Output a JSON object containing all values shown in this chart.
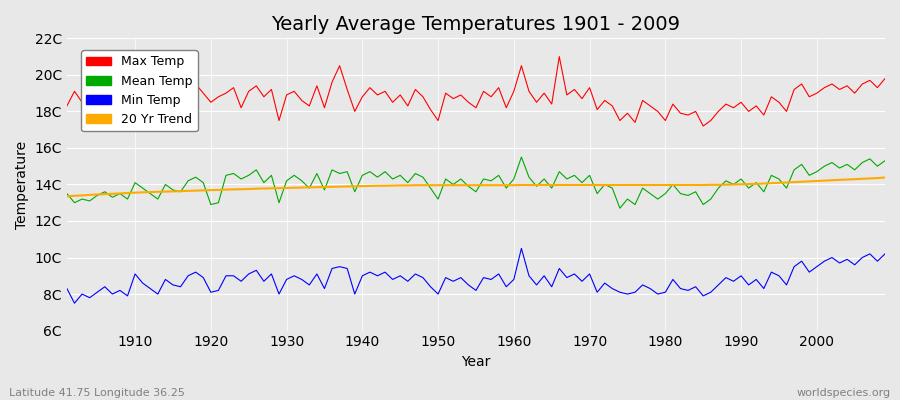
{
  "title": "Yearly Average Temperatures 1901 - 2009",
  "xlabel": "Year",
  "ylabel": "Temperature",
  "footnote_left": "Latitude 41.75 Longitude 36.25",
  "footnote_right": "worldspecies.org",
  "years": [
    1901,
    1902,
    1903,
    1904,
    1905,
    1906,
    1907,
    1908,
    1909,
    1910,
    1911,
    1912,
    1913,
    1914,
    1915,
    1916,
    1917,
    1918,
    1919,
    1920,
    1921,
    1922,
    1923,
    1924,
    1925,
    1926,
    1927,
    1928,
    1929,
    1930,
    1931,
    1932,
    1933,
    1934,
    1935,
    1936,
    1937,
    1938,
    1939,
    1940,
    1941,
    1942,
    1943,
    1944,
    1945,
    1946,
    1947,
    1948,
    1949,
    1950,
    1951,
    1952,
    1953,
    1954,
    1955,
    1956,
    1957,
    1958,
    1959,
    1960,
    1961,
    1962,
    1963,
    1964,
    1965,
    1966,
    1967,
    1968,
    1969,
    1970,
    1971,
    1972,
    1973,
    1974,
    1975,
    1976,
    1977,
    1978,
    1979,
    1980,
    1981,
    1982,
    1983,
    1984,
    1985,
    1986,
    1987,
    1988,
    1989,
    1990,
    1991,
    1992,
    1993,
    1994,
    1995,
    1996,
    1997,
    1998,
    1999,
    2000,
    2001,
    2002,
    2003,
    2004,
    2005,
    2006,
    2007,
    2008,
    2009
  ],
  "max_temp": [
    18.3,
    19.1,
    18.5,
    18.0,
    17.5,
    18.8,
    18.2,
    17.8,
    18.1,
    17.5,
    18.6,
    18.3,
    18.0,
    18.9,
    18.4,
    18.7,
    19.1,
    19.5,
    19.0,
    18.5,
    18.8,
    19.0,
    19.3,
    18.2,
    19.1,
    19.4,
    18.8,
    19.2,
    17.5,
    18.9,
    19.1,
    18.6,
    18.3,
    19.4,
    18.2,
    19.6,
    20.5,
    19.2,
    18.0,
    18.8,
    19.3,
    18.9,
    19.1,
    18.5,
    18.9,
    18.3,
    19.2,
    18.8,
    18.1,
    17.5,
    19.0,
    18.7,
    18.9,
    18.5,
    18.2,
    19.1,
    18.8,
    19.3,
    18.2,
    19.1,
    20.5,
    19.1,
    18.5,
    19.0,
    18.4,
    21.0,
    18.9,
    19.2,
    18.7,
    19.3,
    18.1,
    18.6,
    18.3,
    17.5,
    17.9,
    17.4,
    18.6,
    18.3,
    18.0,
    17.5,
    18.4,
    17.9,
    17.8,
    18.0,
    17.2,
    17.5,
    18.0,
    18.4,
    18.2,
    18.5,
    18.0,
    18.3,
    17.8,
    18.8,
    18.5,
    18.0,
    19.2,
    19.5,
    18.8,
    19.0,
    19.3,
    19.5,
    19.2,
    19.4,
    19.0,
    19.5,
    19.7,
    19.3,
    19.8
  ],
  "mean_temp": [
    13.5,
    13.0,
    13.2,
    13.1,
    13.4,
    13.6,
    13.3,
    13.5,
    13.2,
    14.1,
    13.8,
    13.5,
    13.2,
    14.0,
    13.7,
    13.6,
    14.2,
    14.4,
    14.1,
    12.9,
    13.0,
    14.5,
    14.6,
    14.3,
    14.5,
    14.8,
    14.1,
    14.5,
    13.0,
    14.2,
    14.5,
    14.2,
    13.8,
    14.6,
    13.7,
    14.8,
    14.6,
    14.7,
    13.6,
    14.5,
    14.7,
    14.4,
    14.7,
    14.3,
    14.5,
    14.1,
    14.6,
    14.4,
    13.8,
    13.2,
    14.3,
    14.0,
    14.3,
    13.9,
    13.6,
    14.3,
    14.2,
    14.5,
    13.8,
    14.3,
    15.5,
    14.4,
    13.9,
    14.3,
    13.8,
    14.7,
    14.3,
    14.5,
    14.1,
    14.5,
    13.5,
    14.0,
    13.8,
    12.7,
    13.2,
    12.9,
    13.8,
    13.5,
    13.2,
    13.5,
    14.0,
    13.5,
    13.4,
    13.6,
    12.9,
    13.2,
    13.8,
    14.2,
    14.0,
    14.3,
    13.8,
    14.1,
    13.6,
    14.5,
    14.3,
    13.8,
    14.8,
    15.1,
    14.5,
    14.7,
    15.0,
    15.2,
    14.9,
    15.1,
    14.8,
    15.2,
    15.4,
    15.0,
    15.3
  ],
  "min_temp": [
    8.3,
    7.5,
    8.0,
    7.8,
    8.1,
    8.4,
    8.0,
    8.2,
    7.9,
    9.1,
    8.6,
    8.3,
    8.0,
    8.8,
    8.5,
    8.4,
    9.0,
    9.2,
    8.9,
    8.1,
    8.2,
    9.0,
    9.0,
    8.7,
    9.1,
    9.3,
    8.7,
    9.1,
    8.0,
    8.8,
    9.0,
    8.8,
    8.5,
    9.1,
    8.3,
    9.4,
    9.5,
    9.4,
    8.0,
    9.0,
    9.2,
    9.0,
    9.2,
    8.8,
    9.0,
    8.7,
    9.1,
    8.9,
    8.4,
    8.0,
    8.9,
    8.7,
    8.9,
    8.5,
    8.2,
    8.9,
    8.8,
    9.1,
    8.4,
    8.8,
    10.5,
    9.0,
    8.5,
    9.0,
    8.4,
    9.4,
    8.9,
    9.1,
    8.7,
    9.1,
    8.1,
    8.6,
    8.3,
    8.1,
    8.0,
    8.1,
    8.5,
    8.3,
    8.0,
    8.1,
    8.8,
    8.3,
    8.2,
    8.4,
    7.9,
    8.1,
    8.5,
    8.9,
    8.7,
    9.0,
    8.5,
    8.8,
    8.3,
    9.2,
    9.0,
    8.5,
    9.5,
    9.8,
    9.2,
    9.5,
    9.8,
    10.0,
    9.7,
    9.9,
    9.6,
    10.0,
    10.2,
    9.8,
    10.2
  ],
  "trend_years": [
    1901,
    1902,
    1903,
    1904,
    1905,
    1906,
    1907,
    1908,
    1909,
    1910,
    1911,
    1912,
    1913,
    1914,
    1915,
    1916,
    1917,
    1918,
    1919,
    1920,
    1921,
    1922,
    1923,
    1924,
    1925,
    1926,
    1927,
    1928,
    1929,
    1930,
    1931,
    1932,
    1933,
    1934,
    1935,
    1936,
    1937,
    1938,
    1939,
    1940,
    1941,
    1942,
    1943,
    1944,
    1945,
    1946,
    1947,
    1948,
    1949,
    1950,
    1951,
    1952,
    1953,
    1954,
    1955,
    1956,
    1957,
    1958,
    1959,
    1960,
    1961,
    1962,
    1963,
    1964,
    1965,
    1966,
    1967,
    1968,
    1969,
    1970,
    1971,
    1972,
    1973,
    1974,
    1975,
    1976,
    1977,
    1978,
    1979,
    1980,
    1981,
    1982,
    1983,
    1984,
    1985,
    1986,
    1987,
    1988,
    1989,
    1990,
    1991,
    1992,
    1993,
    1994,
    1995,
    1996,
    1997,
    1998,
    1999,
    2000,
    2001,
    2002,
    2003,
    2004,
    2005,
    2006,
    2007,
    2008,
    2009
  ],
  "trend_vals": [
    13.35,
    13.38,
    13.4,
    13.43,
    13.45,
    13.47,
    13.49,
    13.51,
    13.53,
    13.55,
    13.57,
    13.58,
    13.6,
    13.61,
    13.62,
    13.63,
    13.65,
    13.66,
    13.68,
    13.69,
    13.7,
    13.72,
    13.73,
    13.74,
    13.75,
    13.77,
    13.78,
    13.79,
    13.8,
    13.81,
    13.82,
    13.83,
    13.84,
    13.85,
    13.86,
    13.87,
    13.88,
    13.89,
    13.9,
    13.91,
    13.92,
    13.93,
    13.93,
    13.94,
    13.95,
    13.95,
    13.96,
    13.96,
    13.96,
    13.96,
    13.96,
    13.96,
    13.96,
    13.96,
    13.96,
    13.96,
    13.96,
    13.96,
    13.96,
    13.96,
    13.97,
    13.97,
    13.97,
    13.97,
    13.97,
    13.97,
    13.97,
    13.97,
    13.97,
    13.97,
    13.97,
    13.97,
    13.97,
    13.97,
    13.97,
    13.97,
    13.97,
    13.97,
    13.97,
    13.97,
    13.97,
    13.97,
    13.97,
    13.97,
    13.97,
    13.98,
    13.98,
    13.99,
    14.0,
    14.01,
    14.02,
    14.03,
    14.05,
    14.07,
    14.09,
    14.11,
    14.13,
    14.15,
    14.17,
    14.19,
    14.21,
    14.23,
    14.25,
    14.27,
    14.29,
    14.31,
    14.33,
    14.35,
    14.38
  ],
  "max_color": "#ff0000",
  "mean_color": "#00aa00",
  "min_color": "#0000ff",
  "trend_color": "#ffaa00",
  "bg_color": "#e8e8e8",
  "grid_color": "#ffffff",
  "ylim": [
    6,
    22
  ],
  "yticks": [
    6,
    8,
    10,
    12,
    14,
    16,
    18,
    20,
    22
  ],
  "ytick_labels": [
    "6C",
    "8C",
    "10C",
    "12C",
    "14C",
    "16C",
    "18C",
    "20C",
    "22C"
  ],
  "xticks": [
    1910,
    1920,
    1930,
    1940,
    1950,
    1960,
    1970,
    1980,
    1990,
    2000
  ],
  "title_fontsize": 14,
  "axis_fontsize": 10,
  "legend_fontsize": 9
}
